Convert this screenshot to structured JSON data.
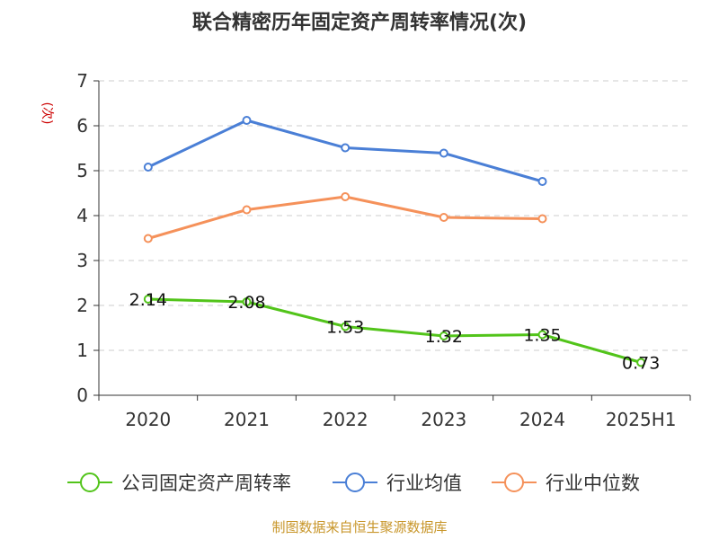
{
  "chart_data": {
    "type": "line",
    "title": "联合精密历年固定资产周转率情况(次)",
    "ylabel": "(次)",
    "xlabel": "",
    "categories": [
      "2020",
      "2021",
      "2022",
      "2023",
      "2024",
      "2025H1"
    ],
    "ylim": [
      0,
      7
    ],
    "yticks": [
      "0",
      "1",
      "2",
      "3",
      "4",
      "5",
      "6",
      "7"
    ],
    "grid": true,
    "legend_position": "bottom",
    "series": [
      {
        "name": "公司固定资产周转率",
        "color": "#52c41a",
        "values": [
          2.14,
          2.08,
          1.53,
          1.32,
          1.35,
          0.73
        ],
        "labels": [
          "2.14",
          "2.08",
          "1.53",
          "1.32",
          "1.35",
          "0.73"
        ]
      },
      {
        "name": "行业均值",
        "color": "#4a7fd6",
        "values": [
          5.08,
          6.12,
          5.51,
          5.39,
          4.76,
          null
        ]
      },
      {
        "name": "行业中位数",
        "color": "#f5915a",
        "values": [
          3.49,
          4.13,
          4.42,
          3.96,
          3.93,
          null
        ]
      }
    ]
  },
  "source": "制图数据来自恒生聚源数据库"
}
